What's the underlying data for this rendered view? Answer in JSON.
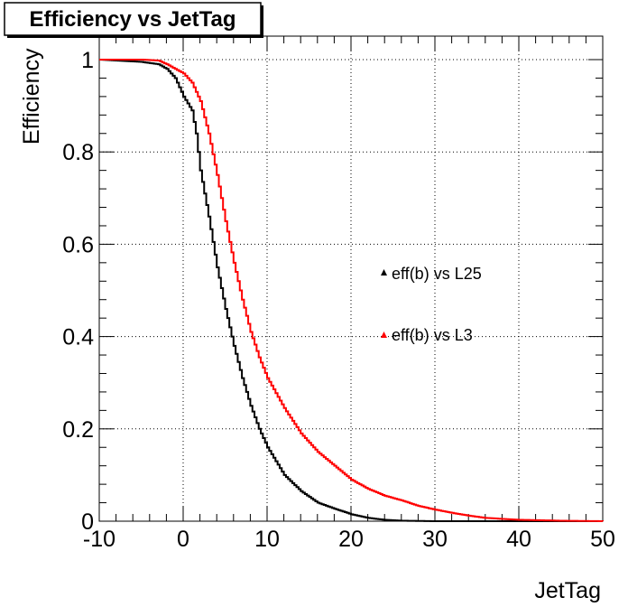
{
  "chart_data": {
    "type": "line",
    "title": "Efficiency vs JetTag",
    "xlabel": "JetTag",
    "ylabel": "Efficiency",
    "xlim": [
      -10,
      50
    ],
    "ylim": [
      0,
      1.0
    ],
    "x_ticks": [
      -10,
      0,
      10,
      20,
      30,
      40,
      50
    ],
    "y_ticks": [
      0,
      0.2,
      0.4,
      0.6,
      0.8,
      1
    ],
    "x_tick_labels": [
      "-10",
      "0",
      "10",
      "20",
      "30",
      "40",
      "50"
    ],
    "y_tick_labels": [
      "0",
      "0.2",
      "0.4",
      "0.6",
      "0.8",
      "1"
    ],
    "grid": true,
    "legend_position": "right-middle",
    "series": [
      {
        "name": "eff(b) vs L25",
        "color": "#000000",
        "x": [
          -10,
          -5,
          -3,
          -2,
          -1,
          0,
          1,
          1.5,
          2,
          3,
          4,
          5,
          6,
          7,
          8,
          9,
          10,
          12,
          14,
          16,
          18,
          20,
          22,
          24,
          26,
          30,
          40,
          50
        ],
        "y": [
          1.0,
          0.995,
          0.99,
          0.98,
          0.96,
          0.92,
          0.89,
          0.84,
          0.76,
          0.66,
          0.55,
          0.46,
          0.38,
          0.31,
          0.25,
          0.2,
          0.16,
          0.1,
          0.065,
          0.04,
          0.027,
          0.015,
          0.007,
          0.003,
          0.001,
          0.0,
          0.0,
          0.0
        ]
      },
      {
        "name": "eff(b) vs L3",
        "color": "#ff0000",
        "x": [
          -10,
          -5,
          -3,
          -2,
          -1,
          0,
          1,
          2,
          3,
          4,
          5,
          6,
          7,
          8,
          9,
          10,
          12,
          14,
          16,
          18,
          20,
          22,
          24,
          26,
          28,
          30,
          32,
          34,
          36,
          40,
          45,
          50
        ],
        "y": [
          1.0,
          1.0,
          0.998,
          0.99,
          0.98,
          0.97,
          0.95,
          0.91,
          0.84,
          0.75,
          0.65,
          0.56,
          0.48,
          0.41,
          0.355,
          0.31,
          0.245,
          0.19,
          0.15,
          0.12,
          0.09,
          0.07,
          0.055,
          0.045,
          0.033,
          0.025,
          0.018,
          0.012,
          0.007,
          0.003,
          0.001,
          0.0
        ]
      }
    ]
  }
}
